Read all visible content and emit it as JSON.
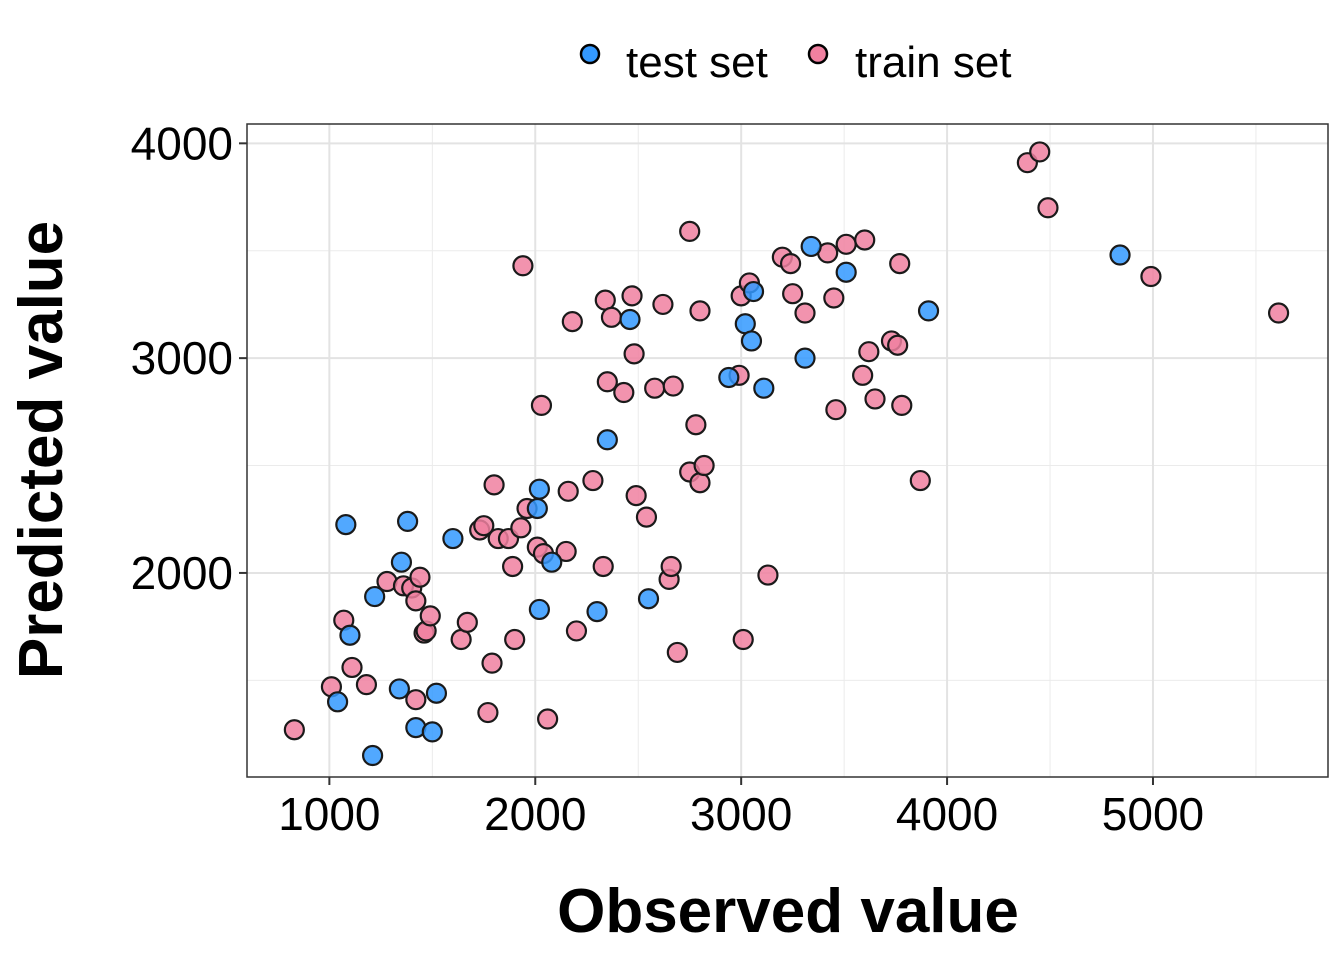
{
  "chart_data": {
    "type": "scatter",
    "xlabel": "Observed value",
    "ylabel": "Predicted value",
    "xlim": [
      600,
      5850
    ],
    "ylim": [
      1050,
      4090
    ],
    "xticks": [
      1000,
      2000,
      3000,
      4000,
      5000
    ],
    "yticks": [
      2000,
      3000,
      4000
    ],
    "grid": true,
    "legend_position": "top",
    "series": [
      {
        "name": "test set",
        "color": "#3399FF",
        "points": [
          [
            1080,
            2225
          ],
          [
            1100,
            1710
          ],
          [
            1040,
            1400
          ],
          [
            1210,
            1150
          ],
          [
            1220,
            1890
          ],
          [
            1340,
            1460
          ],
          [
            1350,
            2050
          ],
          [
            1380,
            2240
          ],
          [
            1420,
            1280
          ],
          [
            1500,
            1260
          ],
          [
            1520,
            1440
          ],
          [
            1600,
            2160
          ],
          [
            2010,
            2300
          ],
          [
            2020,
            2390
          ],
          [
            2020,
            1830
          ],
          [
            2080,
            2050
          ],
          [
            2300,
            1820
          ],
          [
            2350,
            2620
          ],
          [
            2460,
            3180
          ],
          [
            2550,
            1880
          ],
          [
            2940,
            2910
          ],
          [
            3020,
            3160
          ],
          [
            3050,
            3080
          ],
          [
            3060,
            3310
          ],
          [
            3110,
            2860
          ],
          [
            3310,
            3000
          ],
          [
            3340,
            3520
          ],
          [
            3510,
            3400
          ],
          [
            3910,
            3220
          ],
          [
            4840,
            3480
          ]
        ]
      },
      {
        "name": "train set",
        "color": "#F080A0",
        "points": [
          [
            830,
            1270
          ],
          [
            1010,
            1470
          ],
          [
            1070,
            1780
          ],
          [
            1110,
            1560
          ],
          [
            1180,
            1480
          ],
          [
            1280,
            1960
          ],
          [
            1360,
            1940
          ],
          [
            1400,
            1930
          ],
          [
            1420,
            1410
          ],
          [
            1420,
            1870
          ],
          [
            1440,
            1980
          ],
          [
            1460,
            1720
          ],
          [
            1470,
            1730
          ],
          [
            1490,
            1800
          ],
          [
            1640,
            1690
          ],
          [
            1670,
            1770
          ],
          [
            1730,
            2200
          ],
          [
            1750,
            2220
          ],
          [
            1770,
            1350
          ],
          [
            1790,
            1580
          ],
          [
            1800,
            2410
          ],
          [
            1820,
            2160
          ],
          [
            1870,
            2160
          ],
          [
            1890,
            2030
          ],
          [
            1900,
            1690
          ],
          [
            1930,
            2210
          ],
          [
            1940,
            3430
          ],
          [
            1960,
            2300
          ],
          [
            2010,
            2120
          ],
          [
            2030,
            2780
          ],
          [
            2040,
            2090
          ],
          [
            2060,
            1320
          ],
          [
            2150,
            2100
          ],
          [
            2160,
            2380
          ],
          [
            2180,
            3170
          ],
          [
            2200,
            1730
          ],
          [
            2280,
            2430
          ],
          [
            2330,
            2030
          ],
          [
            2340,
            3270
          ],
          [
            2350,
            2890
          ],
          [
            2370,
            3190
          ],
          [
            2430,
            2840
          ],
          [
            2470,
            3290
          ],
          [
            2480,
            3020
          ],
          [
            2490,
            2360
          ],
          [
            2540,
            2260
          ],
          [
            2580,
            2860
          ],
          [
            2620,
            3250
          ],
          [
            2650,
            1970
          ],
          [
            2660,
            2030
          ],
          [
            2670,
            2870
          ],
          [
            2690,
            1630
          ],
          [
            2750,
            3590
          ],
          [
            2750,
            2470
          ],
          [
            2780,
            2690
          ],
          [
            2800,
            3220
          ],
          [
            2800,
            2420
          ],
          [
            2820,
            2500
          ],
          [
            2990,
            2920
          ],
          [
            3000,
            3290
          ],
          [
            3010,
            1690
          ],
          [
            3040,
            3350
          ],
          [
            3130,
            1990
          ],
          [
            3200,
            3470
          ],
          [
            3240,
            3440
          ],
          [
            3250,
            3300
          ],
          [
            3310,
            3210
          ],
          [
            3420,
            3490
          ],
          [
            3450,
            3280
          ],
          [
            3460,
            2760
          ],
          [
            3510,
            3530
          ],
          [
            3590,
            2920
          ],
          [
            3600,
            3550
          ],
          [
            3620,
            3030
          ],
          [
            3650,
            2810
          ],
          [
            3730,
            3080
          ],
          [
            3760,
            3060
          ],
          [
            3770,
            3440
          ],
          [
            3780,
            2780
          ],
          [
            3870,
            2430
          ],
          [
            4390,
            3910
          ],
          [
            4450,
            3960
          ],
          [
            4490,
            3700
          ],
          [
            4990,
            3380
          ],
          [
            5610,
            3210
          ]
        ]
      }
    ]
  },
  "legend": {
    "items": [
      {
        "label": "test set",
        "color": "#3399FF"
      },
      {
        "label": "train set",
        "color": "#F080A0"
      }
    ]
  }
}
